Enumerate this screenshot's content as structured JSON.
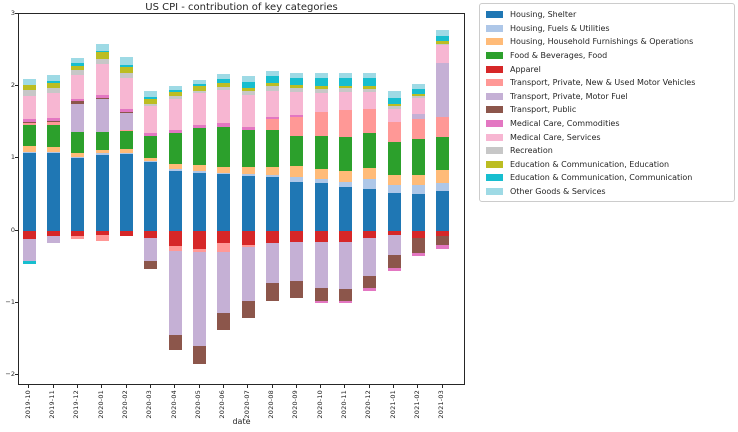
{
  "chart_data": {
    "type": "bar",
    "stacked": true,
    "title": "US CPI - contribution of key categories",
    "xlabel": "date",
    "ylabel": "",
    "ylim": [
      -2.15,
      3.0
    ],
    "yticks": [
      3,
      2,
      1,
      0,
      -1,
      -2
    ],
    "ytick_labels": [
      "3",
      "2",
      "1",
      "0",
      "−1",
      "−2"
    ],
    "grid": false,
    "legend_position": "outside-upper-right",
    "categories": [
      "2019-10",
      "2019-11",
      "2019-12",
      "2020-01",
      "2020-02",
      "2020-03",
      "2020-04",
      "2020-05",
      "2020-06",
      "2020-07",
      "2020-08",
      "2020-09",
      "2020-10",
      "2020-11",
      "2020-12",
      "2021-01",
      "2021-02",
      "2021-03"
    ],
    "series": [
      {
        "name": "Housing, Shelter",
        "color": "#1f77b4",
        "values": [
          1.07,
          1.08,
          1.0,
          1.05,
          1.07,
          0.95,
          0.82,
          0.8,
          0.78,
          0.76,
          0.75,
          0.68,
          0.66,
          0.6,
          0.58,
          0.52,
          0.51,
          0.55
        ]
      },
      {
        "name": "Housing, Fuels & Utilities",
        "color": "#aec7e8",
        "values": [
          0.02,
          0.01,
          0.02,
          0.02,
          0.01,
          0.02,
          0.03,
          0.02,
          0.02,
          0.03,
          0.02,
          0.07,
          0.05,
          0.08,
          0.13,
          0.11,
          0.12,
          0.11
        ]
      },
      {
        "name": "Housing, Household Furnishings & Operations",
        "color": "#ffbb78",
        "values": [
          0.08,
          0.07,
          0.06,
          0.05,
          0.05,
          0.04,
          0.07,
          0.09,
          0.08,
          0.09,
          0.11,
          0.15,
          0.14,
          0.15,
          0.16,
          0.14,
          0.14,
          0.18
        ]
      },
      {
        "name": "Food & Beverages, Food",
        "color": "#2ca02c",
        "values": [
          0.3,
          0.31,
          0.28,
          0.25,
          0.25,
          0.3,
          0.43,
          0.51,
          0.56,
          0.52,
          0.51,
          0.41,
          0.46,
          0.47,
          0.48,
          0.46,
          0.5,
          0.46
        ]
      },
      {
        "name": "Apparel",
        "color": "#d62728",
        "values": [
          -0.11,
          -0.07,
          -0.07,
          -0.06,
          -0.07,
          -0.1,
          -0.21,
          -0.25,
          -0.17,
          -0.2,
          -0.17,
          -0.16,
          -0.16,
          -0.16,
          -0.1,
          -0.06,
          -0.1,
          -0.07
        ]
      },
      {
        "name": "Transport, Private, New & Used Motor Vehicles",
        "color": "#ff9896",
        "values": [
          0.02,
          0.03,
          -0.05,
          -0.08,
          0.02,
          0.0,
          -0.07,
          -0.05,
          -0.12,
          -0.02,
          0.15,
          0.27,
          0.34,
          0.37,
          0.34,
          0.27,
          0.27,
          0.27
        ]
      },
      {
        "name": "Transport, Private, Motor Fuel",
        "color": "#c5b0d5",
        "values": [
          -0.31,
          -0.1,
          0.4,
          0.45,
          0.23,
          -0.32,
          -1.16,
          -1.29,
          -0.85,
          -0.75,
          -0.56,
          -0.54,
          -0.64,
          -0.65,
          -0.53,
          -0.27,
          0.07,
          0.75
        ]
      },
      {
        "name": "Transport, Public",
        "color": "#8c564b",
        "values": [
          0.02,
          0.02,
          0.03,
          0.02,
          0.02,
          -0.11,
          -0.21,
          -0.26,
          -0.24,
          -0.24,
          -0.25,
          -0.23,
          -0.17,
          -0.16,
          -0.16,
          -0.19,
          -0.21,
          -0.13
        ]
      },
      {
        "name": "Medical Care, Commodities",
        "color": "#e377c2",
        "values": [
          0.03,
          0.04,
          0.03,
          0.04,
          0.04,
          0.04,
          0.05,
          0.05,
          0.05,
          0.04,
          0.03,
          0.02,
          -0.03,
          -0.03,
          -0.04,
          -0.04,
          -0.04,
          -0.05
        ]
      },
      {
        "name": "Medical Care, Services",
        "color": "#f7b6d2",
        "values": [
          0.32,
          0.34,
          0.33,
          0.43,
          0.42,
          0.37,
          0.42,
          0.44,
          0.46,
          0.44,
          0.37,
          0.32,
          0.25,
          0.25,
          0.23,
          0.18,
          0.23,
          0.25
        ]
      },
      {
        "name": "Recreation",
        "color": "#c7c7c7",
        "values": [
          0.09,
          0.08,
          0.07,
          0.07,
          0.07,
          0.04,
          0.04,
          0.03,
          0.04,
          0.05,
          0.06,
          0.05,
          0.06,
          0.05,
          0.04,
          0.04,
          0.02,
          0.02
        ]
      },
      {
        "name": "Education & Communication, Education",
        "color": "#bcbd22",
        "values": [
          0.07,
          0.07,
          0.06,
          0.09,
          0.09,
          0.07,
          0.06,
          0.06,
          0.05,
          0.05,
          0.05,
          0.05,
          0.04,
          0.04,
          0.04,
          0.03,
          0.03,
          0.03
        ]
      },
      {
        "name": "Education & Communication, Communication",
        "color": "#17becf",
        "values": [
          -0.04,
          0.02,
          0.04,
          0.02,
          0.02,
          0.02,
          0.03,
          0.03,
          0.06,
          0.08,
          0.09,
          0.1,
          0.11,
          0.1,
          0.11,
          0.09,
          0.07,
          0.08
        ]
      },
      {
        "name": "Other Goods & Services",
        "color": "#9edae5",
        "values": [
          0.08,
          0.08,
          0.07,
          0.1,
          0.11,
          0.08,
          0.06,
          0.06,
          0.07,
          0.08,
          0.07,
          0.07,
          0.07,
          0.07,
          0.08,
          0.09,
          0.07,
          0.08
        ]
      }
    ]
  }
}
